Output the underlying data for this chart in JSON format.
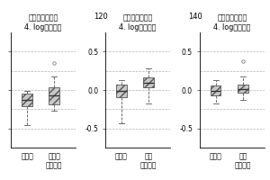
{
  "title_line1": "视黄醇结合蛋白",
  "title_line2": "4. log中位倍数",
  "panels": [
    {
      "n_label": "120",
      "n_label_show": false,
      "groups": [
        "对照组",
        "早发型\n先兆子痫"
      ],
      "ylim": [
        -0.75,
        0.75
      ],
      "yticks": [
        -0.5,
        0.0,
        0.5
      ],
      "show_yticks": false,
      "box_data": [
        {
          "med": -0.13,
          "q1": -0.21,
          "q3": -0.05,
          "whislo": -0.46,
          "whishi": -0.01,
          "fliers": []
        },
        {
          "med": -0.07,
          "q1": -0.19,
          "q3": 0.04,
          "whislo": -0.27,
          "whishi": 0.18,
          "fliers": [
            0.35
          ]
        }
      ]
    },
    {
      "n_label": "120",
      "n_label_show": true,
      "groups": [
        "对照组",
        "重度\n先兆子痫"
      ],
      "ylim": [
        -0.75,
        0.75
      ],
      "yticks": [
        -0.5,
        0.0,
        0.5
      ],
      "show_yticks": true,
      "box_data": [
        {
          "med": -0.01,
          "q1": -0.09,
          "q3": 0.07,
          "whislo": -0.43,
          "whishi": 0.13,
          "fliers": []
        },
        {
          "med": 0.09,
          "q1": 0.03,
          "q3": 0.16,
          "whislo": -0.17,
          "whishi": 0.28,
          "fliers": []
        }
      ]
    },
    {
      "n_label": "140",
      "n_label_show": true,
      "groups": [
        "对照组",
        "重度\n先兆子痫"
      ],
      "ylim": [
        -0.75,
        0.75
      ],
      "yticks": [
        -0.5,
        0.0,
        0.5
      ],
      "show_yticks": true,
      "box_data": [
        {
          "med": -0.01,
          "q1": -0.07,
          "q3": 0.06,
          "whislo": -0.17,
          "whishi": 0.13,
          "fliers": []
        },
        {
          "med": 0.01,
          "q1": -0.04,
          "q3": 0.07,
          "whislo": -0.13,
          "whishi": 0.18,
          "fliers": [
            0.38
          ]
        }
      ]
    }
  ],
  "box_facecolor": "#c8c8c8",
  "box_edgecolor": "#555555",
  "median_color": "#333333",
  "whisker_color": "#555555",
  "flier_color": "#666666",
  "background_color": "#ffffff",
  "grid_color": "#aaaaaa",
  "tick_fontsize": 5.5,
  "label_fontsize": 5.0,
  "title_fontsize": 5.8,
  "n_fontsize": 6.0
}
